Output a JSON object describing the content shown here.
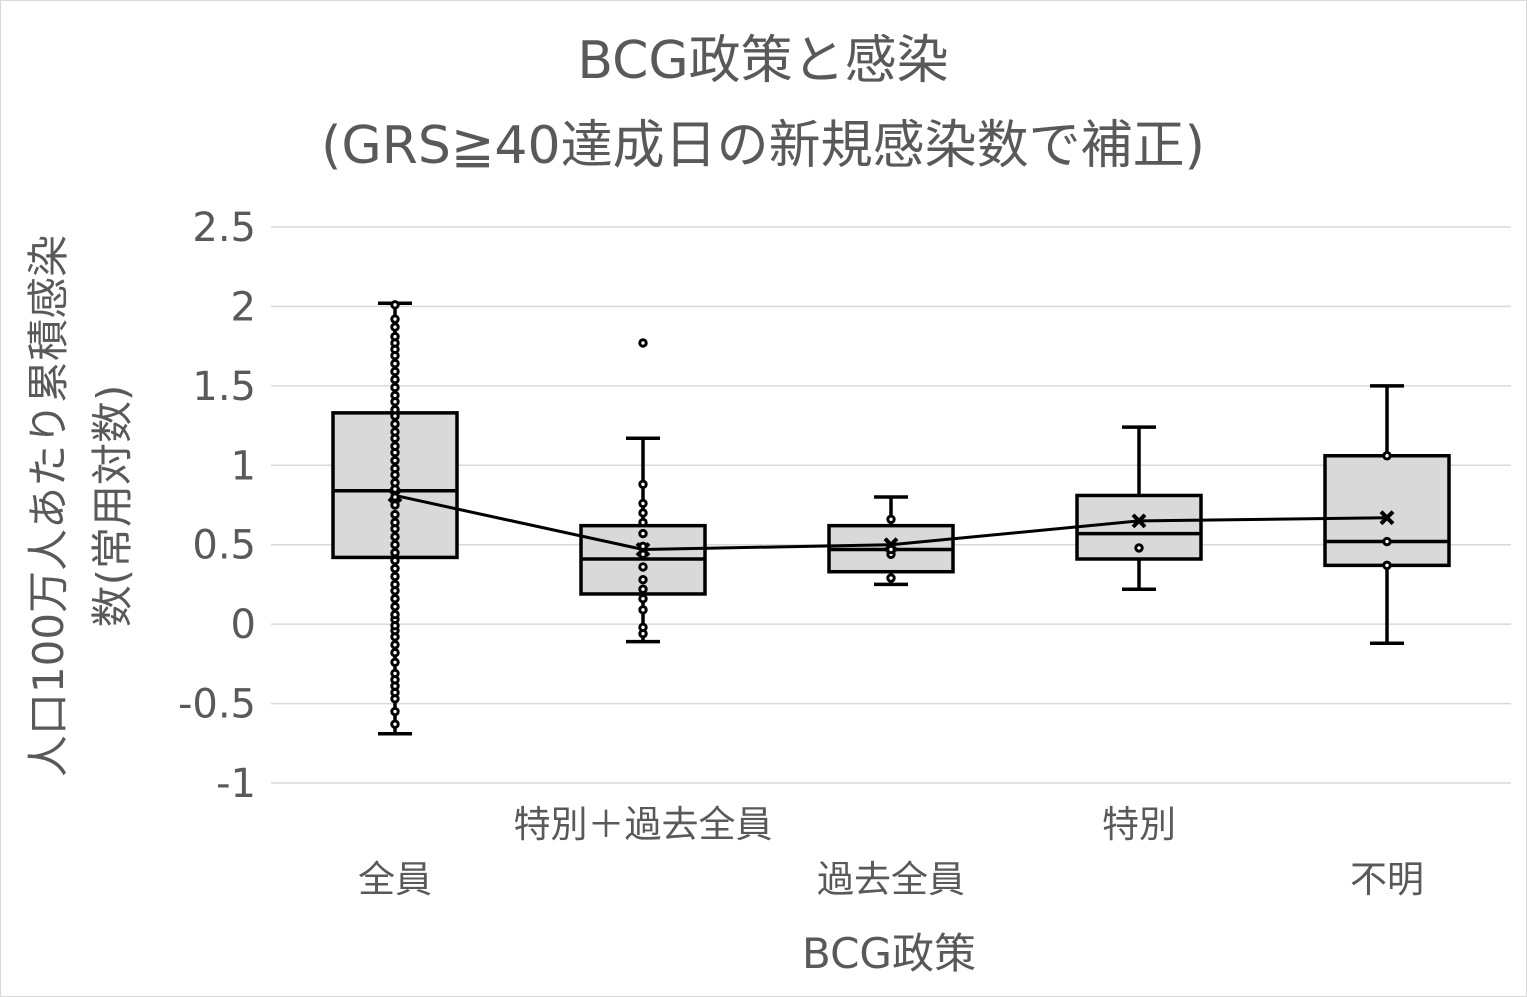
{
  "chart_data": {
    "type": "box",
    "title_line1": "BCG政策と感染",
    "title_line2": "(GRS≧40達成日の新規感染数で補正)",
    "xlabel": "BCG政策",
    "ylabel_line1": "人口100万人あたり累積感染",
    "ylabel_line2": "数(常用対数)",
    "ylim": [
      -1,
      2.5
    ],
    "y_ticks": [
      {
        "value": 2.5,
        "label": "2.5"
      },
      {
        "value": 2,
        "label": "2"
      },
      {
        "value": 1.5,
        "label": "1.5"
      },
      {
        "value": 1,
        "label": "1"
      },
      {
        "value": 0.5,
        "label": "0.5"
      },
      {
        "value": 0,
        "label": "0"
      },
      {
        "value": -0.5,
        "label": "-0.5"
      },
      {
        "value": -1,
        "label": "-1"
      }
    ],
    "grid": true,
    "categories": [
      {
        "name": "全員",
        "label_row": "lower",
        "min": -0.69,
        "q1": 0.42,
        "median": 0.84,
        "q3": 1.33,
        "max": 2.02,
        "mean": 0.81,
        "points": [
          -0.63,
          -0.55,
          -0.47,
          -0.43,
          -0.39,
          -0.35,
          -0.31,
          -0.24,
          -0.18,
          -0.13,
          -0.08,
          -0.04,
          -0.01,
          0.03,
          0.06,
          0.11,
          0.16,
          0.21,
          0.25,
          0.3,
          0.35,
          0.4,
          0.45,
          0.5,
          0.55,
          0.6,
          0.64,
          0.69,
          0.75,
          0.8,
          0.85,
          0.89,
          0.94,
          0.98,
          1.03,
          1.08,
          1.12,
          1.17,
          1.21,
          1.26,
          1.31,
          1.35,
          1.4,
          1.44,
          1.49,
          1.54,
          1.59,
          1.64,
          1.69,
          1.73,
          1.77,
          1.81,
          1.87,
          1.92,
          2.01
        ]
      },
      {
        "name": "特別＋過去全員",
        "label_row": "upper",
        "min": -0.11,
        "q1": 0.19,
        "median": 0.41,
        "q3": 0.62,
        "max": 1.17,
        "mean": 0.47,
        "points": [
          -0.06,
          -0.02,
          0.09,
          0.16,
          0.22,
          0.28,
          0.36,
          0.44,
          0.49,
          0.57,
          0.64,
          0.7,
          0.76,
          0.88,
          1.77
        ]
      },
      {
        "name": "過去全員",
        "label_row": "lower",
        "min": 0.25,
        "q1": 0.33,
        "median": 0.47,
        "q3": 0.62,
        "max": 0.8,
        "mean": 0.5,
        "points": [
          0.29,
          0.44,
          0.47,
          0.66
        ]
      },
      {
        "name": "特別",
        "label_row": "upper",
        "min": 0.22,
        "q1": 0.41,
        "median": 0.57,
        "q3": 0.81,
        "max": 1.24,
        "mean": 0.65,
        "points": [
          0.48
        ]
      },
      {
        "name": "不明",
        "label_row": "lower",
        "min": -0.12,
        "q1": 0.37,
        "median": 0.52,
        "q3": 1.06,
        "max": 1.5,
        "mean": 0.67,
        "points": [
          0.37,
          0.52,
          1.06
        ]
      }
    ]
  }
}
